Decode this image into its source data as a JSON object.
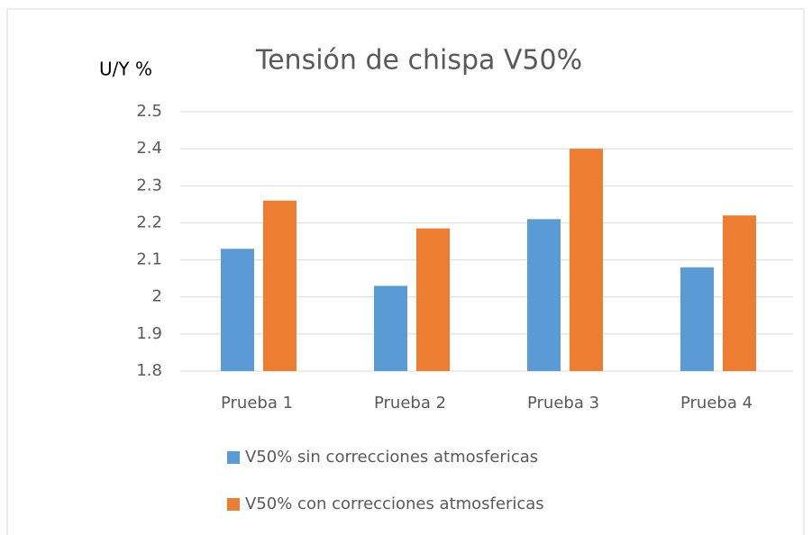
{
  "chart_data": {
    "type": "bar",
    "title": "Tensión de chispa V50%",
    "y_label": "U/Y %",
    "categories": [
      "Prueba 1",
      "Prueba 2",
      "Prueba 3",
      "Prueba 4"
    ],
    "series": [
      {
        "name": "V50% sin correcciones atmosfericas",
        "color": "#5b9bd5",
        "values": [
          2.13,
          2.03,
          2.21,
          2.08
        ]
      },
      {
        "name": "V50% con correcciones atmosfericas",
        "color": "#ed7d31",
        "values": [
          2.26,
          2.185,
          2.4,
          2.22
        ]
      }
    ],
    "ylim": [
      1.8,
      2.5
    ],
    "yticks": [
      1.8,
      1.9,
      2,
      2.1,
      2.2,
      2.3,
      2.4,
      2.5
    ],
    "grid": true,
    "legend": "bottom"
  }
}
